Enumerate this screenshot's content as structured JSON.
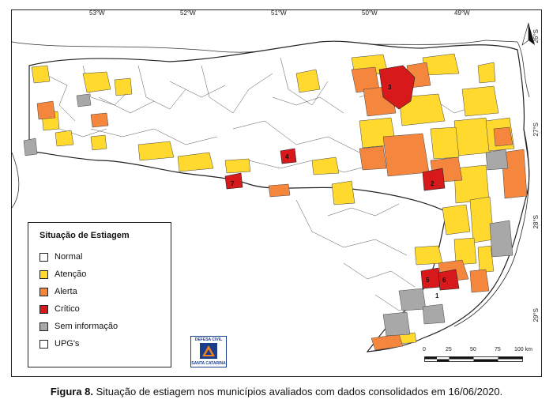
{
  "axes": {
    "longitudes": [
      "53°W",
      "52°W",
      "51°W",
      "50°W",
      "49°W"
    ],
    "latitudes": [
      "26°S",
      "27°S",
      "28°S",
      "29°S"
    ]
  },
  "legend": {
    "title": "Situação de Estiagem",
    "items": [
      {
        "label": "Normal",
        "color": "#ffffff"
      },
      {
        "label": "Atenção",
        "color": "#ffd92e"
      },
      {
        "label": "Alerta",
        "color": "#f5863e"
      },
      {
        "label": "Crítico",
        "color": "#d7191c"
      },
      {
        "label": "Sem informação",
        "color": "#a8a8a8"
      },
      {
        "label": "UPG's",
        "color": "#ffffff"
      }
    ]
  },
  "map_labels": [
    "1",
    "2",
    "3",
    "4",
    "5",
    "6",
    "7"
  ],
  "scale": {
    "ticks": [
      "0",
      "25",
      "50",
      "75",
      "100 km"
    ]
  },
  "logo": {
    "line1": "DEFESA CIVIL",
    "line2": "SANTA CATARINA"
  },
  "caption": {
    "label": "Figura 8.",
    "text": " Situação de estiagem nos municípios avaliados com dados consolidados em 16/06/2020."
  }
}
